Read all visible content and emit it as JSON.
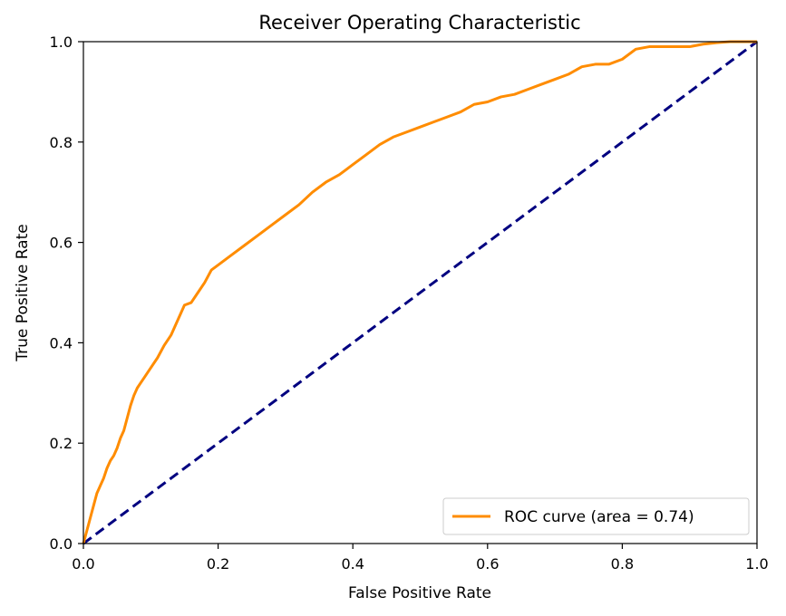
{
  "chart_data": {
    "type": "line",
    "title": "Receiver Operating Characteristic",
    "xlabel": "False Positive Rate",
    "ylabel": "True Positive Rate",
    "xlim": [
      0.0,
      1.0
    ],
    "ylim": [
      0.0,
      1.0
    ],
    "xticks": [
      "0.0",
      "0.2",
      "0.4",
      "0.6",
      "0.8",
      "1.0"
    ],
    "yticks": [
      "0.0",
      "0.2",
      "0.4",
      "0.6",
      "0.8",
      "1.0"
    ],
    "grid": false,
    "legend_position": "lower right",
    "series": [
      {
        "name": "ROC curve (area = 0.74)",
        "color": "#ff8c00",
        "style": "solid",
        "x": [
          0.0,
          0.004,
          0.008,
          0.012,
          0.016,
          0.02,
          0.025,
          0.03,
          0.035,
          0.04,
          0.045,
          0.05,
          0.055,
          0.06,
          0.065,
          0.07,
          0.075,
          0.08,
          0.085,
          0.09,
          0.1,
          0.11,
          0.12,
          0.13,
          0.14,
          0.15,
          0.16,
          0.17,
          0.18,
          0.19,
          0.2,
          0.22,
          0.24,
          0.26,
          0.28,
          0.3,
          0.32,
          0.34,
          0.36,
          0.38,
          0.4,
          0.42,
          0.44,
          0.46,
          0.48,
          0.5,
          0.52,
          0.54,
          0.56,
          0.58,
          0.6,
          0.62,
          0.64,
          0.66,
          0.68,
          0.7,
          0.72,
          0.74,
          0.76,
          0.78,
          0.8,
          0.82,
          0.84,
          0.86,
          0.88,
          0.9,
          0.92,
          0.94,
          0.96,
          0.98,
          1.0
        ],
        "y": [
          0.0,
          0.02,
          0.04,
          0.06,
          0.08,
          0.1,
          0.115,
          0.13,
          0.15,
          0.165,
          0.175,
          0.19,
          0.21,
          0.225,
          0.25,
          0.275,
          0.295,
          0.31,
          0.32,
          0.33,
          0.35,
          0.37,
          0.395,
          0.415,
          0.445,
          0.475,
          0.48,
          0.5,
          0.52,
          0.545,
          0.555,
          0.575,
          0.595,
          0.615,
          0.635,
          0.655,
          0.675,
          0.7,
          0.72,
          0.735,
          0.755,
          0.775,
          0.795,
          0.81,
          0.82,
          0.83,
          0.84,
          0.85,
          0.86,
          0.875,
          0.88,
          0.89,
          0.895,
          0.905,
          0.915,
          0.925,
          0.935,
          0.95,
          0.955,
          0.955,
          0.965,
          0.985,
          0.99,
          0.99,
          0.99,
          0.99,
          0.995,
          0.998,
          1.0,
          1.0,
          1.0
        ]
      },
      {
        "name": "",
        "color": "#000080",
        "style": "dashed",
        "x": [
          0.0,
          1.0
        ],
        "y": [
          0.0,
          1.0
        ]
      }
    ]
  }
}
